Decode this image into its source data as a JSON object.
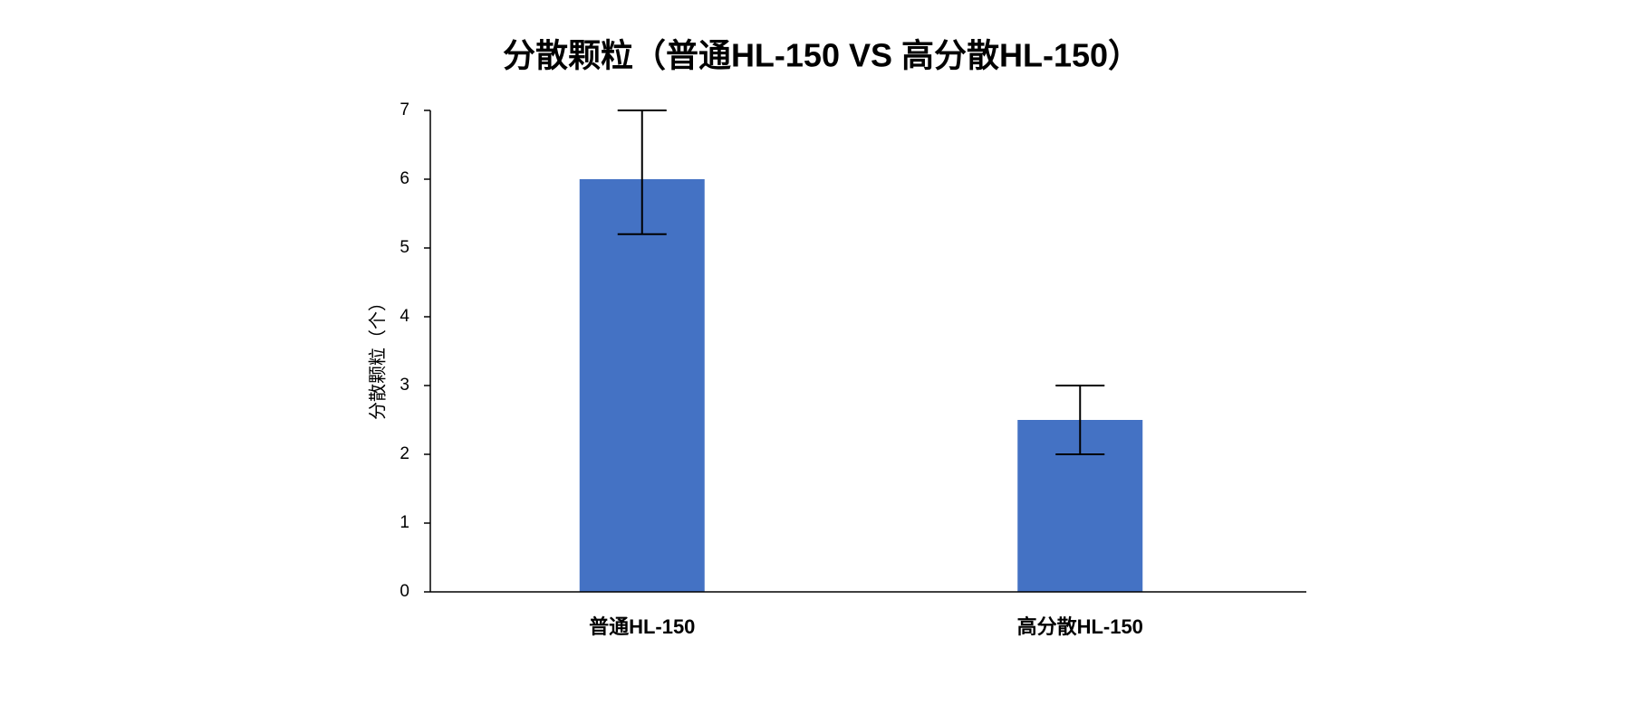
{
  "chart_data": {
    "type": "bar",
    "title": "分散颗粒（普通HL-150 VS 高分散HL-150）",
    "y_label": "分散颗粒（个）",
    "categories": [
      "普通HL-150",
      "高分散HL-150"
    ],
    "values": [
      6,
      2.5
    ],
    "error_plus": [
      1,
      0.5
    ],
    "error_minus": [
      0.8,
      0.5
    ],
    "color": "#4472c4",
    "ylim": [
      0,
      7
    ],
    "yticks": [
      0,
      1,
      2,
      3,
      4,
      5,
      6,
      7
    ],
    "grid": false
  }
}
